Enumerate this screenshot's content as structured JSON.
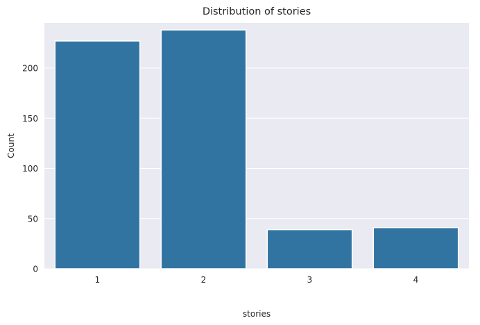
{
  "chart_data": {
    "type": "bar",
    "title": "Distribution of stories",
    "xlabel": "stories",
    "ylabel": "Count",
    "categories": [
      "1",
      "2",
      "3",
      "4"
    ],
    "values": [
      227,
      238,
      39,
      41
    ],
    "ylim": [
      0,
      245
    ],
    "yticks": [
      0,
      50,
      100,
      150,
      200
    ],
    "grid": true,
    "bar_color": "#3274a1",
    "background_color": "#eaeaf2",
    "grid_color": "#ffffff"
  }
}
